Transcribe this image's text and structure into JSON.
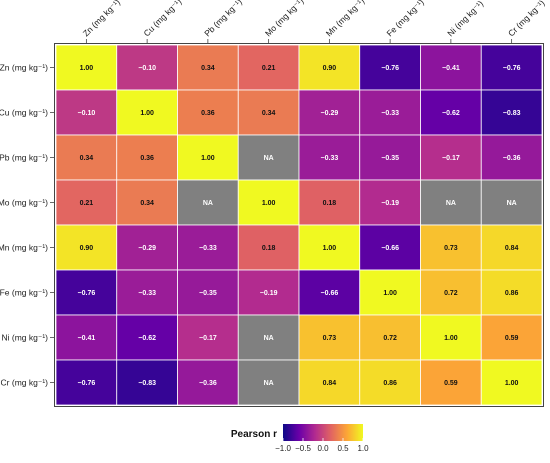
{
  "chart_data": {
    "type": "heatmap",
    "title": "",
    "xlabel": "",
    "ylabel": "",
    "variables": [
      "Zn (mg kg⁻¹)",
      "Cu (mg kg⁻¹)",
      "Pb (mg kg⁻¹)",
      "Mo (mg kg⁻¹)",
      "Mn (mg kg⁻¹)",
      "Fe (mg kg⁻¹)",
      "Ni (mg kg⁻¹)",
      "Cr (mg kg⁻¹)"
    ],
    "matrix": [
      [
        1.0,
        -0.1,
        0.34,
        0.21,
        0.9,
        -0.76,
        -0.41,
        -0.76
      ],
      [
        -0.1,
        1.0,
        0.36,
        0.34,
        -0.29,
        -0.33,
        -0.62,
        -0.83
      ],
      [
        0.34,
        0.36,
        1.0,
        null,
        -0.33,
        -0.35,
        -0.17,
        -0.36
      ],
      [
        0.21,
        0.34,
        null,
        1.0,
        0.18,
        -0.19,
        null,
        null
      ],
      [
        0.9,
        -0.29,
        -0.33,
        0.18,
        1.0,
        -0.66,
        0.73,
        0.84
      ],
      [
        -0.76,
        -0.33,
        -0.35,
        -0.19,
        -0.66,
        1.0,
        0.72,
        0.86
      ],
      [
        -0.41,
        -0.62,
        -0.17,
        null,
        0.73,
        0.72,
        1.0,
        0.59
      ],
      [
        -0.76,
        -0.83,
        -0.36,
        null,
        0.84,
        0.86,
        0.59,
        1.0
      ]
    ],
    "na_label": "NA",
    "na_color": "#808080",
    "color_scale": {
      "name": "plasma",
      "domain": [
        -1.0,
        1.0
      ],
      "stops": [
        "#0d0887",
        "#6a00a8",
        "#b12a90",
        "#e16462",
        "#fca636",
        "#f0f921"
      ]
    },
    "legend": {
      "title": "Pearson r",
      "ticks": [
        "−1.0",
        "−0.5",
        "0.0",
        "0.5",
        "1.0"
      ],
      "tick_values": [
        -1.0,
        -0.5,
        0.0,
        0.5,
        1.0
      ],
      "placement": "bottom"
    },
    "grid": false
  }
}
